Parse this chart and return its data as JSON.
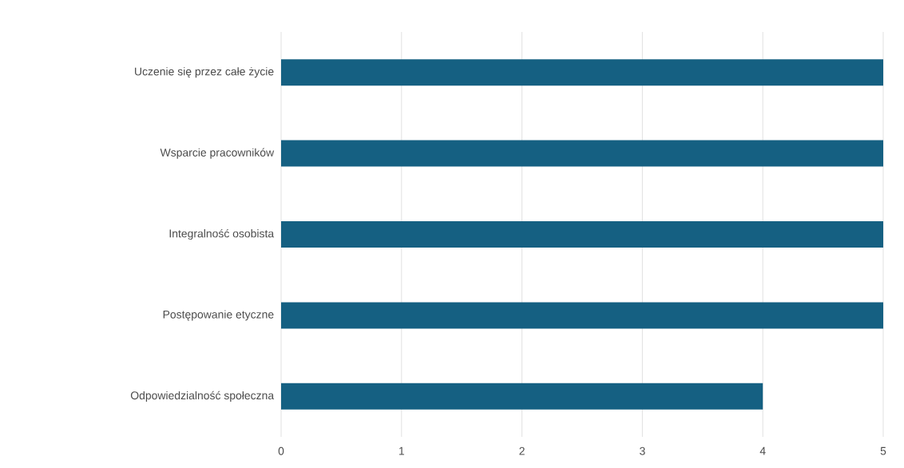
{
  "chart_data": {
    "type": "bar",
    "orientation": "horizontal",
    "categories": [
      "Uczenie się przez całe życie",
      "Wsparcie pracowników",
      "Integralność osobista",
      "Postępowanie etyczne",
      "Odpowiedzialność społeczna"
    ],
    "values": [
      5,
      5,
      5,
      5,
      4
    ],
    "color": "#156082",
    "xlim": [
      0,
      5
    ],
    "xticks": [
      0,
      1,
      2,
      3,
      4,
      5
    ],
    "grid": "x"
  }
}
